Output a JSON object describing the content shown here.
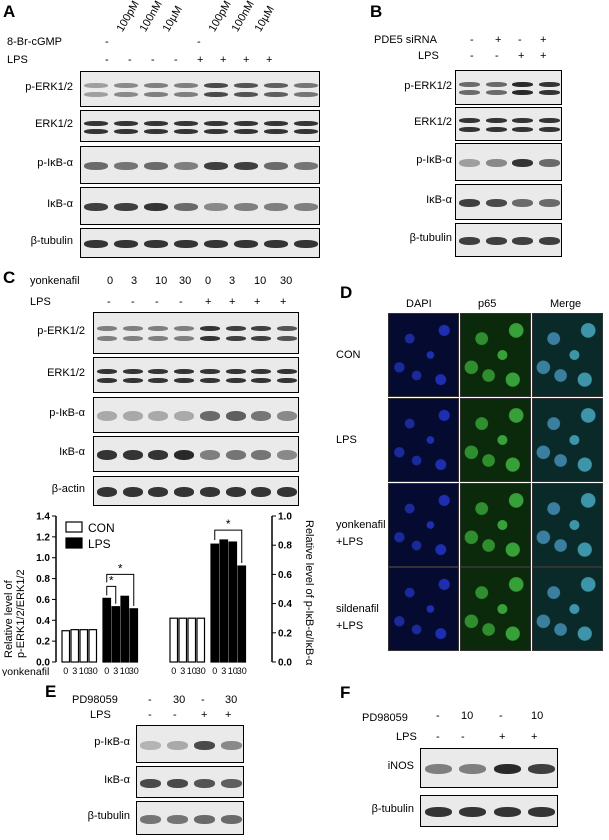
{
  "panels": {
    "A": {
      "label": "A",
      "treatment_label": "8-Br-cGMP",
      "lps_label": "LPS",
      "concentrations": [
        "-",
        "100pM",
        "100nM",
        "10µM",
        "-",
        "100pM",
        "100nM",
        "10µM"
      ],
      "lps_signs": [
        "-",
        "-",
        "-",
        "-",
        "+",
        "+",
        "+",
        "+"
      ],
      "rows": [
        "p-ERK1/2",
        "ERK1/2",
        "p-IκB-α",
        "IκB-α",
        "β-tubulin"
      ]
    },
    "B": {
      "label": "B",
      "treatment_label": "PDE5 siRNA",
      "lps_label": "LPS",
      "treatment_signs": [
        "-",
        "+",
        "-",
        "+"
      ],
      "lps_signs": [
        "-",
        "-",
        "+",
        "+"
      ],
      "rows": [
        "p-ERK1/2",
        "ERK1/2",
        "p-IκB-α",
        "IκB-α",
        "β-tubulin"
      ]
    },
    "C": {
      "label": "C",
      "treatment_label": "yonkenafil",
      "lps_label": "LPS",
      "doses": [
        "0",
        "3",
        "10",
        "30",
        "0",
        "3",
        "10",
        "30"
      ],
      "lps_signs": [
        "-",
        "-",
        "-",
        "-",
        "+",
        "+",
        "+",
        "+"
      ],
      "rows": [
        "p-ERK1/2",
        "ERK1/2",
        "p-IκB-α",
        "IκB-α",
        "β-actin"
      ]
    },
    "D": {
      "label": "D",
      "columns": [
        "DAPI",
        "p65",
        "Merge"
      ],
      "rows": [
        "CON",
        "LPS",
        "yonkenafil\n+LPS",
        "sildenafil\n+LPS"
      ]
    },
    "E": {
      "label": "E",
      "treatment_label": "PD98059",
      "lps_label": "LPS",
      "treatment_values": [
        "-",
        "30",
        "-",
        "30"
      ],
      "lps_signs": [
        "-",
        "-",
        "+",
        "+"
      ],
      "rows": [
        "p-IκB-α",
        "IκB-α",
        "β-tubulin"
      ]
    },
    "F": {
      "label": "F",
      "treatment_label": "PD98059",
      "lps_label": "LPS",
      "treatment_values": [
        "-",
        "10",
        "-",
        "10"
      ],
      "lps_signs": [
        "-",
        "-",
        "+",
        "+"
      ],
      "rows": [
        "iNOS",
        "β-tubulin"
      ]
    }
  },
  "chart_data": {
    "type": "bar",
    "legend": [
      {
        "name": "CON",
        "fill": "#ffffff"
      },
      {
        "name": "LPS",
        "fill": "#000000"
      }
    ],
    "legend_position": "top-left",
    "ylabel_left": "Relative level of\np-ERK1/2/ERK1/2",
    "ylabel_right": "Relative level of p-IκB-α/IκB-α",
    "ylim": [
      0,
      1.4
    ],
    "yticks": [
      "0.0",
      "0.2",
      "0.4",
      "0.6",
      "0.8",
      "1.0",
      "1.2",
      "1.4"
    ],
    "ylim_right": [
      0,
      1.0
    ],
    "yticks_right": [
      "0.0",
      "0.2",
      "0.4",
      "0.6",
      "0.8",
      "1.0"
    ],
    "x_row_label": "yonkenafil",
    "lps_row_label": "LPS",
    "doses": [
      "0",
      "3",
      "10",
      "30",
      "0",
      "3",
      "10",
      "30"
    ],
    "lps_signs": [
      "-",
      "-",
      "-",
      "-",
      "+",
      "+",
      "+",
      "+"
    ],
    "groups": [
      {
        "name": "p-ERK1/2/ERK1/2",
        "con": [
          0.3,
          0.31,
          0.31,
          0.31
        ],
        "lps": [
          0.61,
          0.53,
          0.63,
          0.51
        ]
      },
      {
        "name": "p-IκB-α/IκB-α",
        "con": [
          0.42,
          0.42,
          0.42,
          0.42
        ],
        "lps": [
          1.13,
          1.17,
          1.15,
          0.92
        ]
      }
    ],
    "significance": [
      "*",
      "*",
      "*"
    ]
  }
}
